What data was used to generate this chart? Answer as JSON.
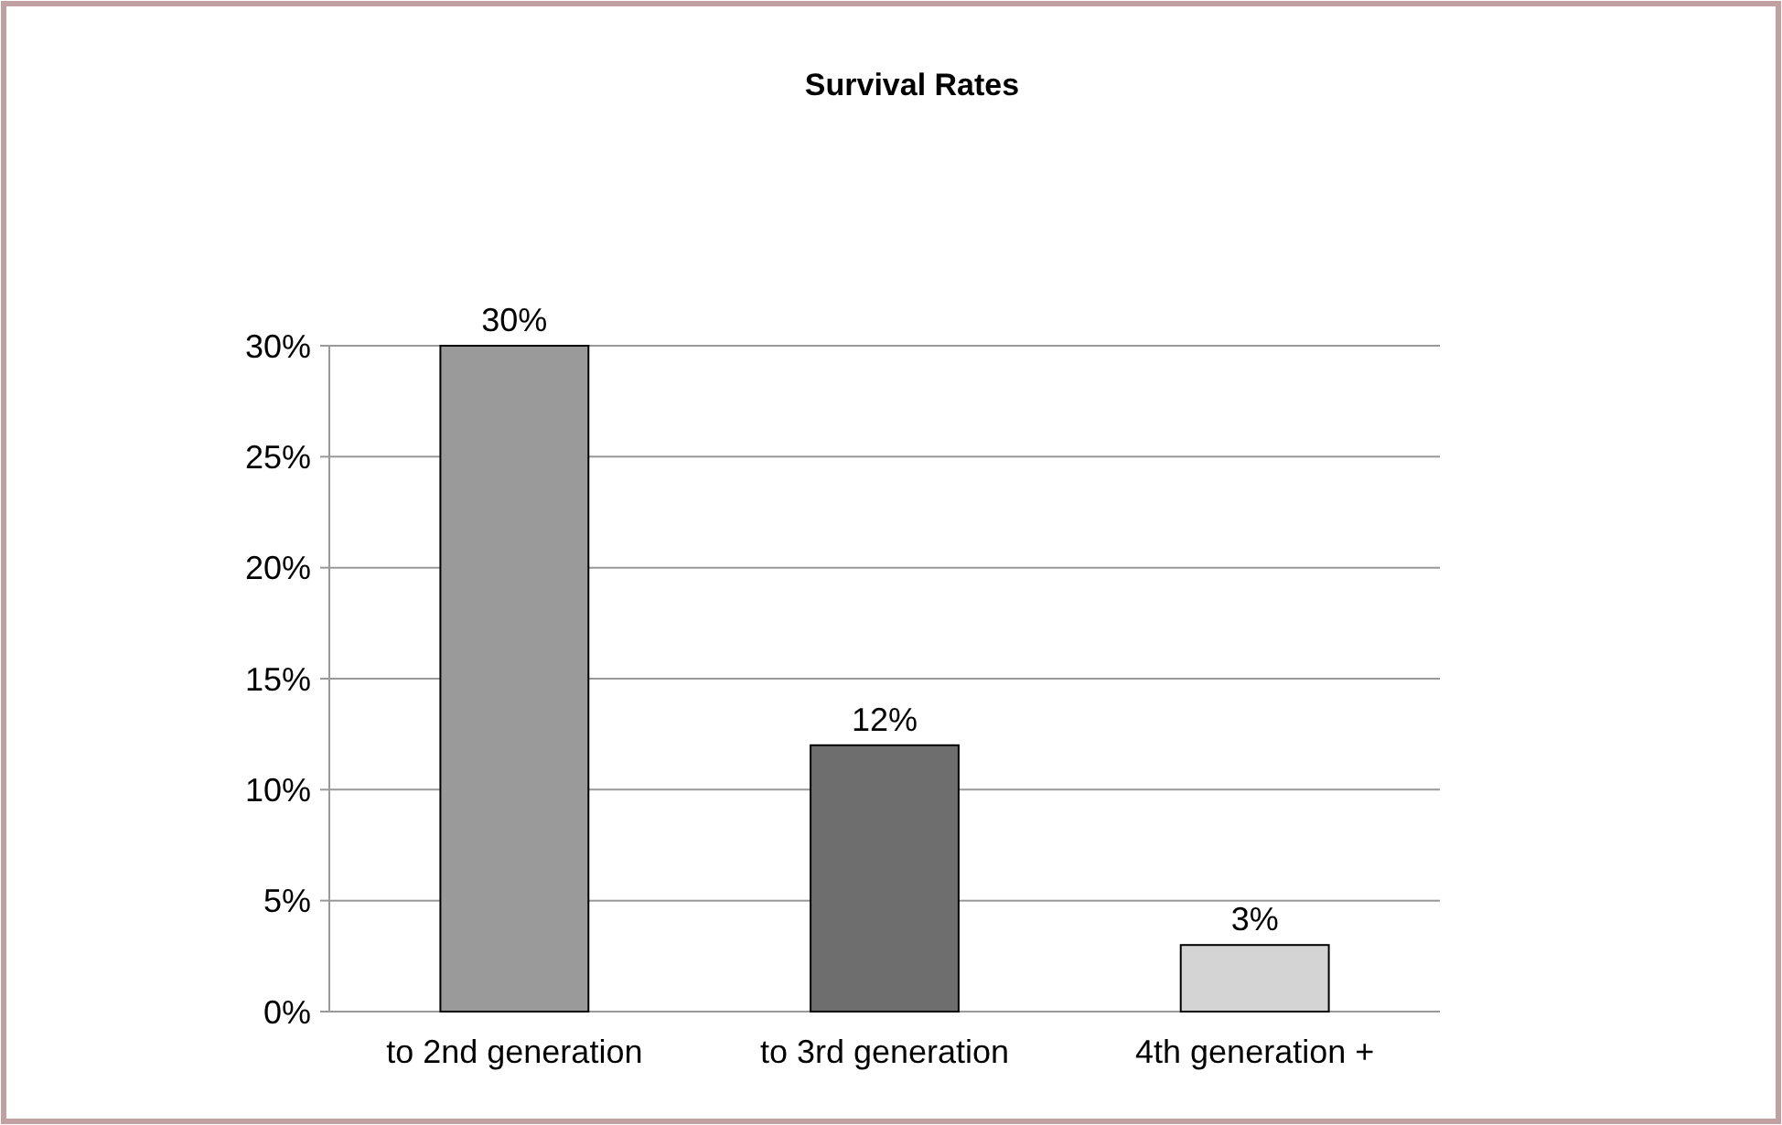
{
  "chart_data": {
    "type": "bar",
    "title": "Survival Rates",
    "categories": [
      "to 2nd generation",
      "to 3rd generation",
      "4th generation +"
    ],
    "values": [
      30,
      12,
      3
    ],
    "colors": [
      "#9a9a9a",
      "#6e6e6e",
      "#d4d4d4"
    ],
    "value_labels": [
      "30%",
      "12%",
      "3%"
    ],
    "ylim": [
      0,
      30
    ],
    "yticks": [
      {
        "value": 0,
        "label": "0%"
      },
      {
        "value": 5,
        "label": "5%"
      },
      {
        "value": 10,
        "label": "10%"
      },
      {
        "value": 15,
        "label": "15%"
      },
      {
        "value": 20,
        "label": "20%"
      },
      {
        "value": 25,
        "label": "25%"
      },
      {
        "value": 30,
        "label": "30%"
      }
    ],
    "grid": "y"
  }
}
